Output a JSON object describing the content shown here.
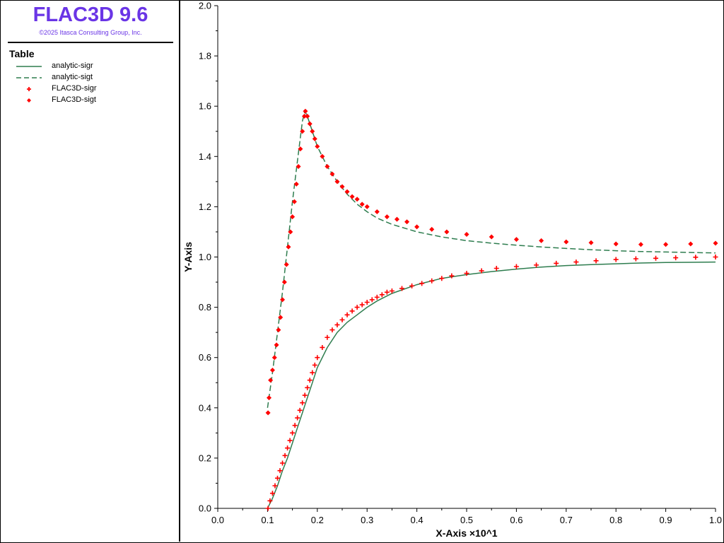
{
  "header": {
    "title": "FLAC3D 9.6",
    "copyright": "©2025 Itasca Consulting Group, Inc."
  },
  "legend": {
    "title": "Table",
    "items": [
      {
        "label": "analytic-sigr",
        "style": "solid",
        "color": "#2e7d4f"
      },
      {
        "label": "analytic-sigt",
        "style": "dashed",
        "color": "#2e7d4f"
      },
      {
        "label": "FLAC3D-sigr",
        "style": "plus",
        "color": "#ff0000"
      },
      {
        "label": "FLAC3D-sigt",
        "style": "diamond",
        "color": "#ff0000"
      }
    ]
  },
  "chart_data": {
    "type": "line",
    "xlabel": "X-Axis ×10^1",
    "ylabel": "Y-Axis",
    "xlim": [
      0.0,
      1.0
    ],
    "ylim": [
      0.0,
      2.0
    ],
    "xticks": [
      "0.0",
      "0.1",
      "0.2",
      "0.3",
      "0.4",
      "0.5",
      "0.6",
      "0.7",
      "0.8",
      "0.9",
      "1.0"
    ],
    "yticks": [
      "0.0",
      "0.2",
      "0.4",
      "0.6",
      "0.8",
      "1.0",
      "1.2",
      "1.4",
      "1.6",
      "1.8",
      "2.0"
    ],
    "grid": false,
    "series": [
      {
        "name": "analytic-sigr",
        "style": "solid",
        "color": "#2e7d4f",
        "x": [
          0.1,
          0.11,
          0.12,
          0.13,
          0.14,
          0.15,
          0.16,
          0.17,
          0.175,
          0.18,
          0.19,
          0.2,
          0.22,
          0.24,
          0.26,
          0.28,
          0.3,
          0.32,
          0.35,
          0.4,
          0.45,
          0.5,
          0.55,
          0.6,
          0.65,
          0.7,
          0.75,
          0.8,
          0.85,
          0.9,
          0.95,
          1.0
        ],
        "y": [
          0.0,
          0.04,
          0.09,
          0.15,
          0.2,
          0.26,
          0.32,
          0.38,
          0.41,
          0.44,
          0.5,
          0.56,
          0.64,
          0.7,
          0.74,
          0.77,
          0.8,
          0.825,
          0.855,
          0.89,
          0.915,
          0.93,
          0.942,
          0.952,
          0.96,
          0.966,
          0.97,
          0.973,
          0.976,
          0.978,
          0.979,
          0.98
        ]
      },
      {
        "name": "analytic-sigt",
        "style": "dashed",
        "color": "#2e7d4f",
        "x": [
          0.1,
          0.11,
          0.12,
          0.13,
          0.14,
          0.15,
          0.16,
          0.17,
          0.175,
          0.18,
          0.19,
          0.2,
          0.22,
          0.24,
          0.26,
          0.28,
          0.3,
          0.32,
          0.35,
          0.4,
          0.45,
          0.5,
          0.55,
          0.6,
          0.65,
          0.7,
          0.75,
          0.8,
          0.85,
          0.9,
          0.95,
          1.0
        ],
        "y": [
          0.4,
          0.54,
          0.7,
          0.86,
          1.04,
          1.22,
          1.38,
          1.54,
          1.58,
          1.56,
          1.5,
          1.44,
          1.36,
          1.3,
          1.25,
          1.21,
          1.18,
          1.155,
          1.13,
          1.1,
          1.08,
          1.065,
          1.055,
          1.047,
          1.04,
          1.034,
          1.029,
          1.025,
          1.022,
          1.02,
          1.018,
          1.016
        ]
      },
      {
        "name": "FLAC3D-sigr",
        "style": "plus",
        "color": "#ff0000",
        "x": [
          0.101,
          0.105,
          0.11,
          0.115,
          0.12,
          0.125,
          0.13,
          0.135,
          0.14,
          0.145,
          0.15,
          0.155,
          0.16,
          0.165,
          0.17,
          0.175,
          0.18,
          0.185,
          0.19,
          0.195,
          0.2,
          0.21,
          0.22,
          0.23,
          0.24,
          0.25,
          0.26,
          0.27,
          0.28,
          0.29,
          0.3,
          0.31,
          0.32,
          0.33,
          0.34,
          0.35,
          0.37,
          0.39,
          0.41,
          0.43,
          0.45,
          0.47,
          0.5,
          0.53,
          0.56,
          0.6,
          0.64,
          0.68,
          0.72,
          0.76,
          0.8,
          0.84,
          0.88,
          0.92,
          0.96,
          1.0
        ],
        "y": [
          0.0,
          0.03,
          0.06,
          0.09,
          0.12,
          0.15,
          0.18,
          0.21,
          0.24,
          0.27,
          0.3,
          0.33,
          0.36,
          0.39,
          0.42,
          0.45,
          0.48,
          0.51,
          0.54,
          0.57,
          0.6,
          0.64,
          0.68,
          0.71,
          0.73,
          0.75,
          0.77,
          0.785,
          0.8,
          0.81,
          0.82,
          0.83,
          0.84,
          0.85,
          0.86,
          0.865,
          0.875,
          0.885,
          0.895,
          0.905,
          0.915,
          0.925,
          0.935,
          0.945,
          0.955,
          0.962,
          0.968,
          0.975,
          0.98,
          0.985,
          0.99,
          0.993,
          0.995,
          0.997,
          0.999,
          1.0
        ]
      },
      {
        "name": "FLAC3D-sigt",
        "style": "diamond",
        "color": "#ff0000",
        "x": [
          0.101,
          0.103,
          0.106,
          0.11,
          0.114,
          0.118,
          0.122,
          0.126,
          0.13,
          0.134,
          0.138,
          0.142,
          0.146,
          0.15,
          0.154,
          0.158,
          0.162,
          0.166,
          0.17,
          0.174,
          0.176,
          0.18,
          0.185,
          0.19,
          0.195,
          0.2,
          0.21,
          0.22,
          0.23,
          0.24,
          0.25,
          0.26,
          0.27,
          0.28,
          0.29,
          0.3,
          0.32,
          0.34,
          0.36,
          0.38,
          0.4,
          0.43,
          0.46,
          0.5,
          0.55,
          0.6,
          0.65,
          0.7,
          0.75,
          0.8,
          0.85,
          0.9,
          0.95,
          1.0
        ],
        "y": [
          0.38,
          0.44,
          0.51,
          0.55,
          0.6,
          0.65,
          0.71,
          0.76,
          0.83,
          0.9,
          0.97,
          1.04,
          1.1,
          1.16,
          1.22,
          1.29,
          1.36,
          1.43,
          1.5,
          1.56,
          1.58,
          1.56,
          1.53,
          1.5,
          1.47,
          1.44,
          1.4,
          1.36,
          1.33,
          1.3,
          1.28,
          1.26,
          1.24,
          1.23,
          1.21,
          1.2,
          1.18,
          1.16,
          1.15,
          1.14,
          1.12,
          1.11,
          1.1,
          1.09,
          1.08,
          1.07,
          1.065,
          1.06,
          1.057,
          1.052,
          1.05,
          1.05,
          1.052,
          1.055
        ]
      }
    ]
  }
}
